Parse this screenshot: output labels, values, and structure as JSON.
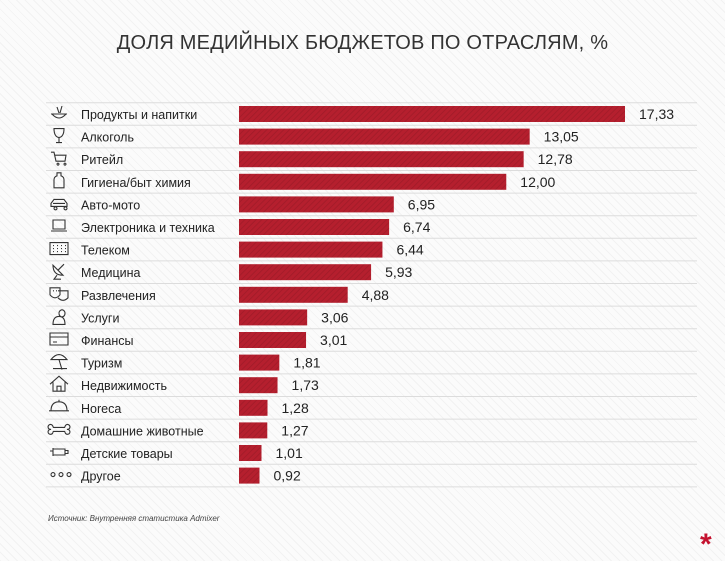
{
  "title": "ДОЛЯ МЕДИЙНЫХ БЮДЖЕТОВ ПО ОТРАСЛЯМ, %",
  "source": "Источник: Внутренняя статистика Admixer",
  "colors": {
    "bar": "#b51f2e",
    "accent": "#c4122f",
    "grid": "#dcdcdc"
  },
  "chart_data": {
    "type": "bar",
    "orientation": "horizontal",
    "categories": [
      "Продукты и напитки",
      "Алкоголь",
      "Ритейл",
      "Гигиена/быт химия",
      "Авто-мото",
      "Электроника и техника",
      "Телеком",
      "Медицина",
      "Развлечения",
      "Услуги",
      "Финансы",
      "Туризм",
      "Недвижимость",
      "Horeca",
      "Домашние животные",
      "Детские товары",
      "Другое"
    ],
    "values": [
      17.33,
      13.05,
      12.78,
      12.0,
      6.95,
      6.74,
      6.44,
      5.93,
      4.88,
      3.06,
      3.01,
      1.81,
      1.73,
      1.28,
      1.27,
      1.01,
      0.92
    ],
    "value_labels": [
      "17,33",
      "13,05",
      "12,78",
      "12,00",
      "6,95",
      "6,74",
      "6,44",
      "5,93",
      "4,88",
      "3,06",
      "3,01",
      "1,81",
      "1,73",
      "1,28",
      "1,27",
      "1,01",
      "0,92"
    ],
    "icons": [
      "food-drinks-icon",
      "wine-glass-icon",
      "shopping-cart-icon",
      "bottle-icon",
      "car-icon",
      "laptop-icon",
      "keypad-icon",
      "satellite-dish-icon",
      "theater-masks-icon",
      "person-icon",
      "credit-card-icon",
      "beach-umbrella-icon",
      "house-icon",
      "cloche-icon",
      "bone-icon",
      "baby-bottle-icon",
      "dots-icon"
    ],
    "xlim": [
      0,
      17.33
    ],
    "grid": true,
    "legend": "none"
  }
}
